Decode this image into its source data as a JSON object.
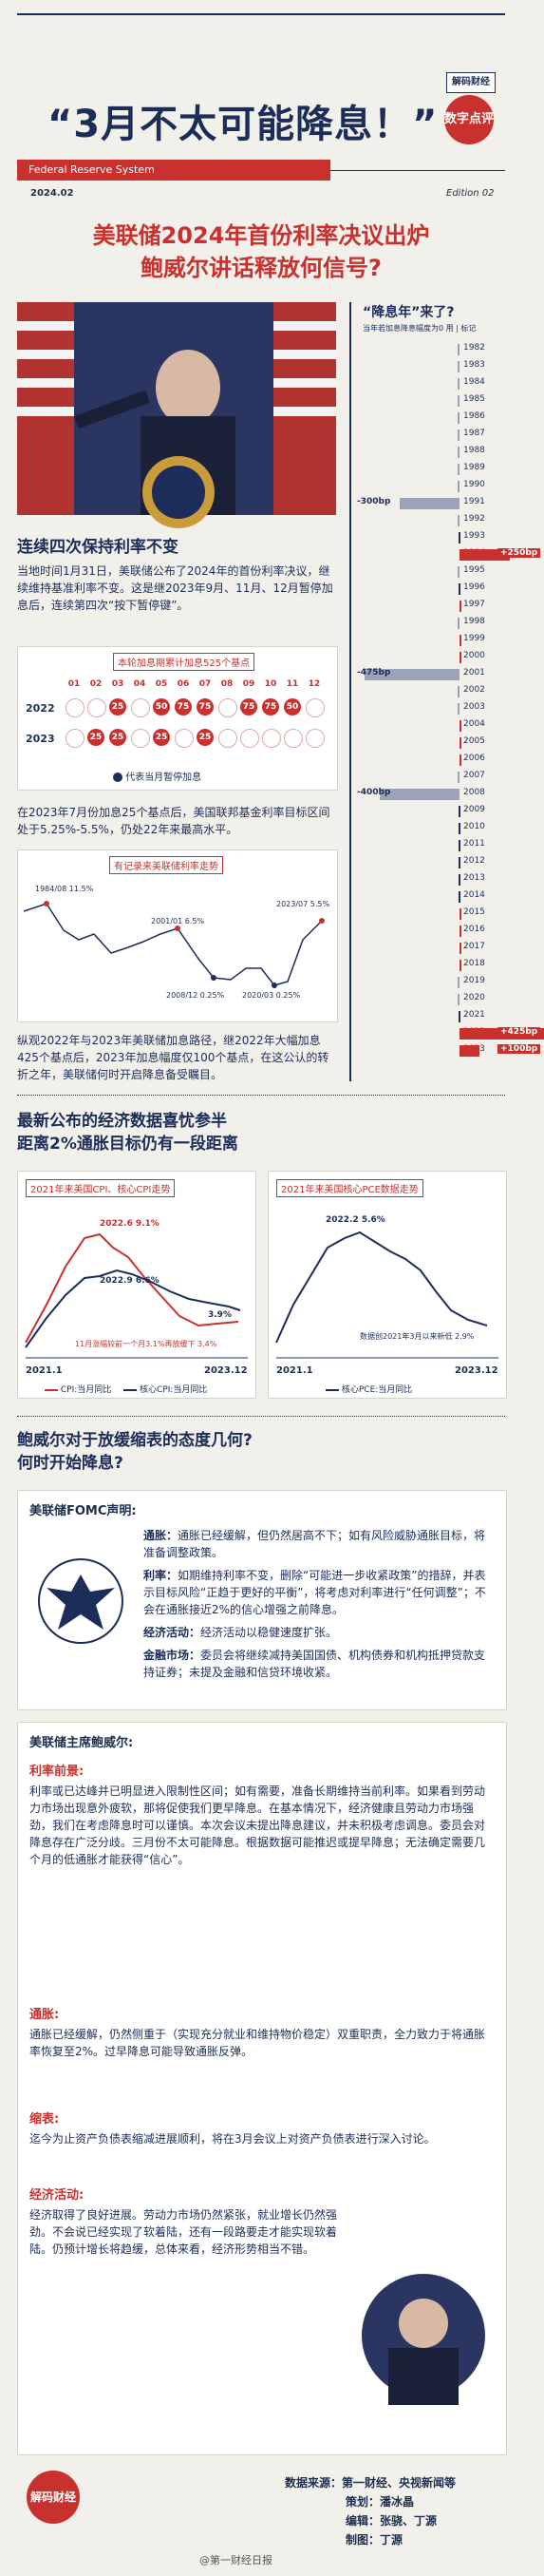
{
  "header": {
    "title": "“3月不太可能降息！”",
    "logo_top": "解码财经",
    "logo_bottom": "数字点评",
    "section": "Federal Reserve System",
    "date": "2024.02",
    "edition": "Edition 02"
  },
  "headline": {
    "line1": "美联储2024年首份利率决议出炉",
    "line2": "鲍威尔讲话释放何信号?"
  },
  "side": {
    "title": "“降息年”来了?",
    "subtitle": "当年若加息降息幅度为0 用 | 标记"
  },
  "section1": {
    "title": "连续四次保持利率不变",
    "para": "当地时间1月31日，美联储公布了2024年的首份利率决议，继续维持基准利率不变。这是继2023年9月、11月、12月暂停加息后，连续第四次“按下暂停键”。",
    "table_title": "本轮加息期累计加息525个基点",
    "months": [
      "01",
      "02",
      "03",
      "04",
      "05",
      "06",
      "07",
      "08",
      "09",
      "10",
      "11",
      "12"
    ],
    "rows": [
      {
        "year": "2022",
        "cells": [
          "",
          "",
          "25",
          "",
          "50",
          "75",
          "75",
          "",
          "75",
          "75",
          "50",
          ""
        ]
      },
      {
        "year": "2023",
        "cells": [
          "",
          "25",
          "25",
          "",
          "25",
          "",
          "25",
          "",
          "",
          "",
          "",
          ""
        ]
      }
    ],
    "legend": "代表当月暂停加息",
    "para2": "在2023年7月份加息25个基点后，美国联邦基金利率目标区间处于5.25%-5.5%，仍处22年来最高水平。",
    "chart_title": "有记录来美联储利率走势",
    "chart_labels": [
      "1984/08 11.5%",
      "2001/01 6.5%",
      "2008/12 0.25%",
      "2020/03 0.25%",
      "2023/07 5.5%"
    ],
    "para3": "纵观2022年与2023年美联储加息路径，继2022年大幅加息425个基点后，2023年加息幅度仅100个基点，在这公认的转折之年，美联储何时开启降息备受瞩目。"
  },
  "rate_years": [
    {
      "year": "1982",
      "v": -5
    },
    {
      "year": "1983",
      "v": -2
    },
    {
      "year": "1984",
      "v": -4
    },
    {
      "year": "1985",
      "v": -3
    },
    {
      "year": "1986",
      "v": -7
    },
    {
      "year": "1987",
      "v": -4
    },
    {
      "year": "1988",
      "v": -8
    },
    {
      "year": "1989",
      "v": -6
    },
    {
      "year": "1990",
      "v": -1
    },
    {
      "year": "1991",
      "v": -300
    },
    {
      "year": "1992",
      "v": -1
    },
    {
      "year": "1993",
      "v": 0
    },
    {
      "year": "1994",
      "v": 250
    },
    {
      "year": "1995",
      "v": -1
    },
    {
      "year": "1996",
      "v": 0
    },
    {
      "year": "1997",
      "v": 1
    },
    {
      "year": "1998",
      "v": -1
    },
    {
      "year": "1999",
      "v": 1
    },
    {
      "year": "2000",
      "v": 1
    },
    {
      "year": "2001",
      "v": -475
    },
    {
      "year": "2002",
      "v": -1
    },
    {
      "year": "2003",
      "v": -1
    },
    {
      "year": "2004",
      "v": 1
    },
    {
      "year": "2005",
      "v": 2
    },
    {
      "year": "2006",
      "v": 1
    },
    {
      "year": "2007",
      "v": -1
    },
    {
      "year": "2008",
      "v": -400
    },
    {
      "year": "2009",
      "v": 0
    },
    {
      "year": "2010",
      "v": 0
    },
    {
      "year": "2011",
      "v": 0
    },
    {
      "year": "2012",
      "v": 0
    },
    {
      "year": "2013",
      "v": 0
    },
    {
      "year": "2014",
      "v": 0
    },
    {
      "year": "2015",
      "v": 1
    },
    {
      "year": "2016",
      "v": 1
    },
    {
      "year": "2017",
      "v": 1
    },
    {
      "year": "2018",
      "v": 1
    },
    {
      "year": "2019",
      "v": -1
    },
    {
      "year": "2020",
      "v": -1
    },
    {
      "year": "2021",
      "v": 0
    },
    {
      "year": "2022",
      "v": 425
    },
    {
      "year": "2023",
      "v": 100
    }
  ],
  "rate_labels": {
    "y1991": "-300bp",
    "y1994": "+250bp",
    "y2001": "-475bp",
    "y2008": "-400bp",
    "y2022": "+425bp",
    "y2023": "+100bp"
  },
  "section2": {
    "title1": "最新公布的经济数据喜忧参半",
    "title2": "距离2%通胀目标仍有一段距离",
    "left_title": "2021年来美国CPI、核心CPI走势",
    "right_title": "2021年来美国核心PCE数据走势",
    "left_labels": [
      "2022.6 9.1%",
      "2022.9 6.6%",
      "3.9%",
      "11月涨幅较前一个月3.1%再放缓下 3.4%"
    ],
    "right_labels": [
      "2022.2 5.6%",
      "数据创2021年3月以来新低 2.9%"
    ],
    "x_left": "2021.1",
    "x_right": "2023.12",
    "legend_left": [
      "CPI:当月同比",
      "核心CPI:当月同比"
    ],
    "legend_right": "核心PCE:当月同比"
  },
  "section3": {
    "title1": "鲍威尔对于放缓缩表的态度几何?",
    "title2": "何时开始降息?",
    "fomc": "美联储FOMC声明:",
    "items": [
      {
        "k": "通胀：",
        "v": "通胀已经缓解，但仍然居高不下；如有风险威胁通胀目标，将准备调整政策。"
      },
      {
        "k": "利率：",
        "v": "如期维持利率不变，删除“可能进一步收紧政策”的措辞，并表示目标风险“正趋于更好的平衡”，将考虑对利率进行“任何调整”；不会在通胀接近2%的信心增强之前降息。"
      },
      {
        "k": "经济活动：",
        "v": "经济活动以稳健速度扩张。"
      },
      {
        "k": "金融市场：",
        "v": "委员会将继续减持美国国债、机构债券和机构抵押贷款支持证券；未提及金融和信贷环境收紧。"
      }
    ],
    "chair": "美联储主席鲍威尔:",
    "q1": "利率前景:",
    "q1_text": "利率或已达峰并已明显进入限制性区间；如有需要，准备长期维持当前利率。如果看到劳动力市场出现意外疲软，那将促使我们更早降息。在基本情况下，经济健康且劳动力市场强劲，我们在考虑降息时可以谨慎。本次会议未提出降息建议，并未积极考虑调息。委员会对降息存在广泛分歧。三月份不太可能降息。根据数据可能推迟或提早降息；无法确定需要几个月的低通胀才能获得“信心”。",
    "q2": "通胀:",
    "q2_text": "通胀已经缓解，仍然侧重于（实现充分就业和维持物价稳定）双重职责，全力致力于将通胀率恢复至2%。过早降息可能导致通胀反弹。",
    "q3": "缩表:",
    "q3_text": "迄今为止资产负债表缩减进展顺利，将在3月会议上对资产负债表进行深入讨论。",
    "q4": "经济活动:",
    "q4_text": "经济取得了良好进展。劳动力市场仍然紧张，就业增长仍然强劲。不会说已经实现了软着陆，还有一段路要走才能实现软着陆。仍预计增长将趋缓，总体来看，经济形势相当不错。"
  },
  "footer": {
    "source": "数据来源：第一财经、央视新闻等",
    "planning": "策划：潘冰晶",
    "edit": "编辑：张骁、丁源",
    "design": "制图：丁源",
    "watermark": "@第一财经日报",
    "logo": "解码财经"
  }
}
